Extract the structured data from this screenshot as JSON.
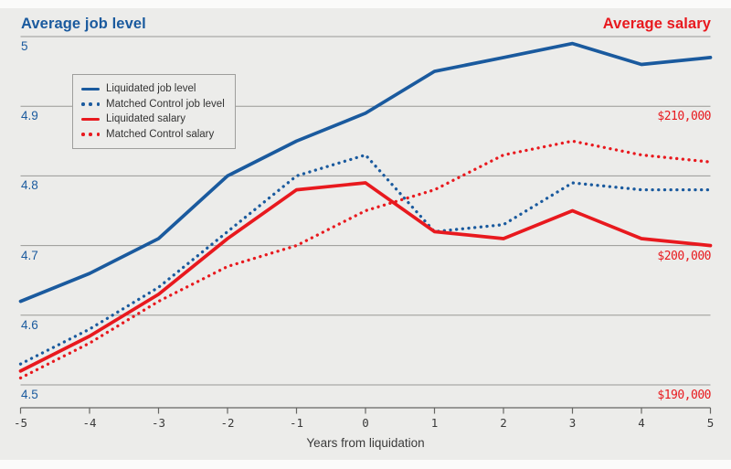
{
  "titles": {
    "left": "Average job level",
    "right": "Average salary"
  },
  "colors": {
    "job_level_blue": "#1a5a9e",
    "salary_red": "#e8191e",
    "background": "#ececea",
    "gridline": "#999996",
    "axis": "#666663",
    "text": "#3a3a3a"
  },
  "legend": {
    "items": [
      "Liquidated job level",
      "Matched Control job level",
      "Liquidated salary",
      "Matched Control salary"
    ]
  },
  "left_axis": {
    "ticks": [
      {
        "label": "5",
        "value": 5.0
      },
      {
        "label": "4.9",
        "value": 4.9
      },
      {
        "label": "4.8",
        "value": 4.8
      },
      {
        "label": "4.7",
        "value": 4.7
      },
      {
        "label": "4.6",
        "value": 4.6
      },
      {
        "label": "4.5",
        "value": 4.5
      }
    ]
  },
  "right_axis": {
    "ticks": [
      {
        "label": "$210,000",
        "value": 210000
      },
      {
        "label": "$200,000",
        "value": 200000
      },
      {
        "label": "$190,000",
        "value": 190000
      }
    ]
  },
  "x_axis": {
    "ticks": [
      "-5",
      "-4",
      "-3",
      "-2",
      "-1",
      "0",
      "1",
      "2",
      "3",
      "4",
      "5"
    ]
  },
  "chart_data": {
    "type": "line",
    "x": [
      -5,
      -4,
      -3,
      -2,
      -1,
      0,
      1,
      2,
      3,
      4,
      5
    ],
    "xlabel": "Years from liquidation",
    "grid": true,
    "legend_position": "top-left",
    "left_axis": {
      "title": "Average job level",
      "range": [
        4.5,
        5.0
      ],
      "tick_step": 0.1
    },
    "right_axis": {
      "title": "Average salary",
      "ticks": [
        190000,
        200000,
        210000
      ],
      "alignment": "level 4.5 = $190,000; each 0.1 level = $5,000"
    },
    "series": [
      {
        "name": "Liquidated job level",
        "axis": "left",
        "style": "solid",
        "color": "#1a5a9e",
        "values": [
          4.62,
          4.66,
          4.71,
          4.8,
          4.85,
          4.89,
          4.95,
          4.97,
          4.99,
          4.96,
          4.97
        ]
      },
      {
        "name": "Matched Control job level",
        "axis": "left",
        "style": "dotted",
        "color": "#1a5a9e",
        "values": [
          4.53,
          4.58,
          4.64,
          4.72,
          4.8,
          4.83,
          4.72,
          4.73,
          4.79,
          4.78,
          4.78
        ]
      },
      {
        "name": "Liquidated salary",
        "axis": "right",
        "style": "solid",
        "color": "#e8191e",
        "values": [
          191000,
          193500,
          196500,
          200500,
          204000,
          204500,
          201000,
          200500,
          202500,
          200500,
          200000
        ]
      },
      {
        "name": "Matched Control salary",
        "axis": "right",
        "style": "dotted",
        "color": "#e8191e",
        "values": [
          190500,
          193000,
          196000,
          198500,
          200000,
          202500,
          204000,
          206500,
          207500,
          206500,
          206000
        ]
      }
    ]
  }
}
